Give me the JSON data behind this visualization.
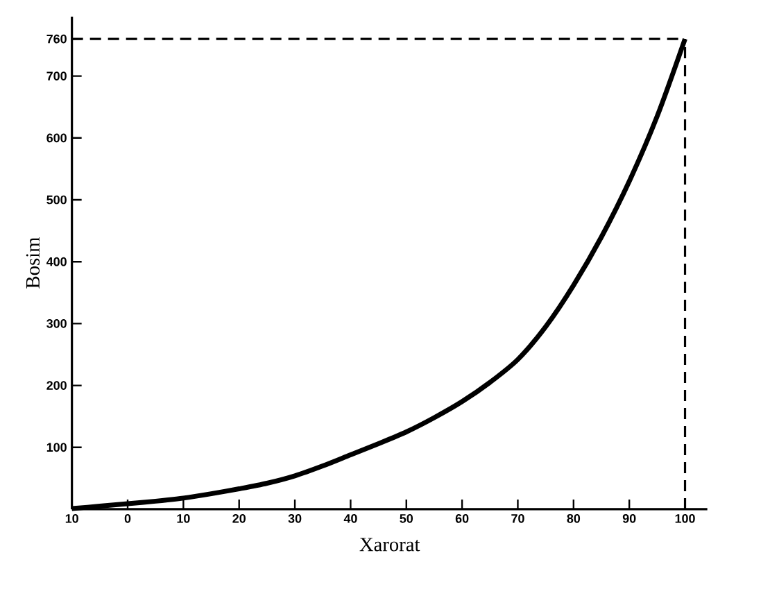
{
  "chart_data": {
    "type": "line",
    "xlabel": "Xarorat",
    "ylabel": "Bosim",
    "x": [
      -10,
      -5,
      0,
      5,
      10,
      15,
      20,
      25,
      30,
      35,
      40,
      45,
      50,
      55,
      60,
      65,
      70,
      75,
      80,
      85,
      90,
      95,
      100
    ],
    "series": [
      {
        "color": "#000000",
        "values": [
          1,
          5,
          9,
          13,
          18,
          25,
          33,
          42,
          54,
          70,
          88,
          106,
          125,
          148,
          174,
          205,
          242,
          295,
          362,
          440,
          530,
          635,
          760
        ]
      }
    ],
    "xlim": [
      -10,
      104
    ],
    "ylim": [
      0,
      796
    ],
    "xticks": [
      {
        "value": -10,
        "label": "10"
      },
      0,
      10,
      20,
      30,
      40,
      50,
      60,
      70,
      80,
      90,
      100
    ],
    "yticks": [
      100,
      200,
      300,
      400,
      500,
      600,
      700,
      760
    ],
    "ref_lines": [
      {
        "axis": "y",
        "value": 760,
        "line_style": "dashed"
      },
      {
        "axis": "x",
        "value": 100,
        "line_style": "dashed"
      }
    ],
    "grid": false,
    "marker": "none",
    "line_style": "solid"
  }
}
